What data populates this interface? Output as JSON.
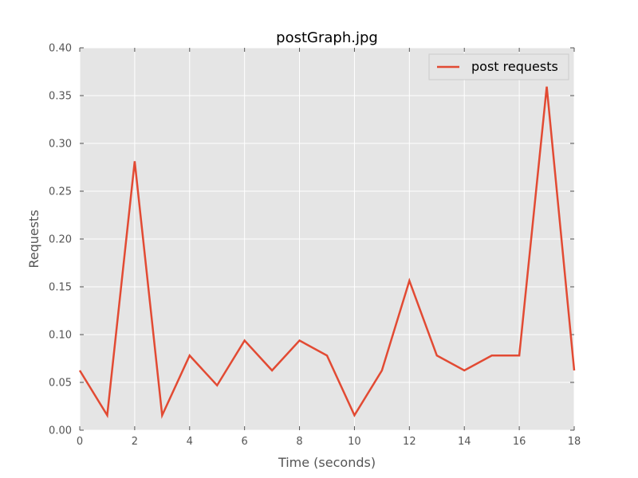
{
  "chart_data": {
    "type": "line",
    "title": "postGraph.jpg",
    "xlabel": "Time (seconds)",
    "ylabel": "Requests",
    "xlim": [
      0,
      18
    ],
    "ylim": [
      0,
      0.4
    ],
    "xticks": [
      "0",
      "2",
      "4",
      "6",
      "8",
      "10",
      "12",
      "14",
      "16",
      "18"
    ],
    "yticks": [
      "0.00",
      "0.05",
      "0.10",
      "0.15",
      "0.20",
      "0.25",
      "0.30",
      "0.35",
      "0.40"
    ],
    "grid": true,
    "legend_position": "top-right",
    "series": [
      {
        "name": "post requests",
        "color": "#E24A33",
        "x": [
          0,
          1,
          2,
          3,
          4,
          5,
          6,
          7,
          8,
          9,
          10,
          11,
          12,
          13,
          14,
          15,
          16,
          17,
          18
        ],
        "y": [
          0.0625,
          0.0156,
          0.2813,
          0.0156,
          0.0781,
          0.0469,
          0.0938,
          0.0625,
          0.0938,
          0.0781,
          0.0156,
          0.0625,
          0.1563,
          0.0781,
          0.0625,
          0.0781,
          0.0781,
          0.3594,
          0.0625
        ]
      }
    ]
  },
  "colors": {
    "plot_background": "#E5E5E5",
    "grid": "#FFFFFF",
    "series": "#E24A33"
  }
}
